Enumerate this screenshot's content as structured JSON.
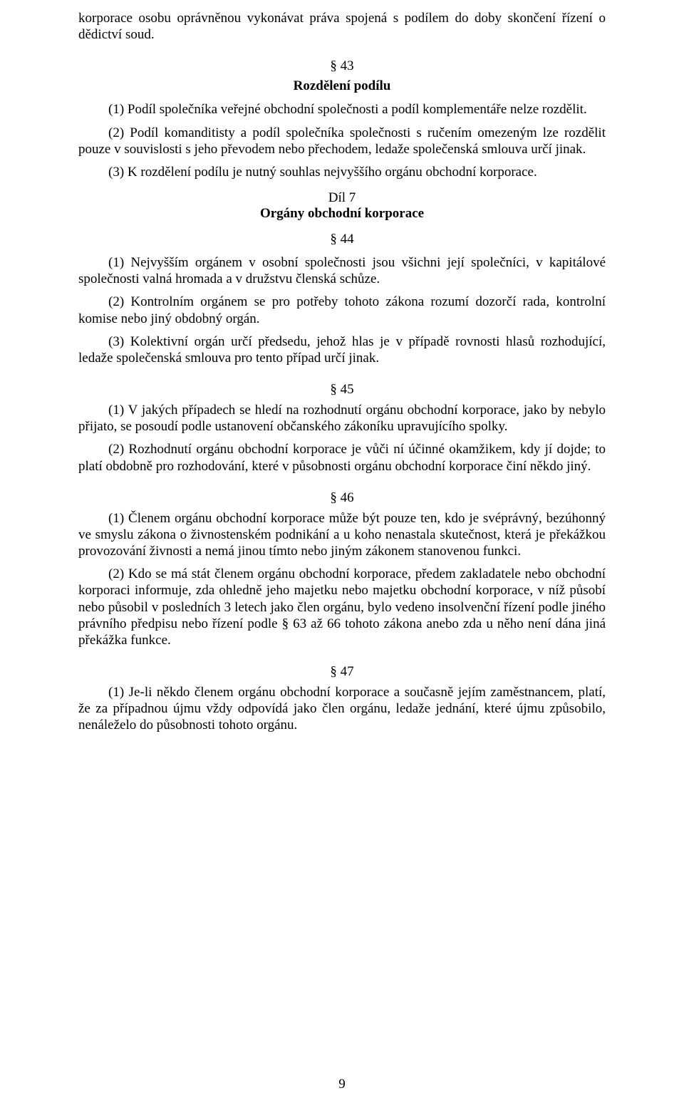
{
  "fragment_top": "korporace osobu oprávněnou vykonávat práva spojená s podílem do doby skončení řízení o dědictví soud.",
  "s43": {
    "num": "§ 43",
    "title": "Rozdělení podílu",
    "p1": "(1) Podíl společníka veřejné obchodní společnosti a podíl komplementáře nelze rozdělit.",
    "p2": "(2) Podíl komanditisty a podíl společníka společnosti s ručením omezeným lze rozdělit pouze v souvislosti s jeho převodem nebo přechodem, ledaže společenská smlouva určí jinak.",
    "p3": "(3) K rozdělení podílu je nutný souhlas nejvyššího orgánu obchodní korporace."
  },
  "dil7": {
    "label": "Díl 7",
    "title": "Orgány obchodní korporace"
  },
  "s44": {
    "num": "§ 44",
    "p1": "(1) Nejvyšším orgánem v osobní společnosti jsou všichni její společníci, v kapitálové společnosti valná hromada a v družstvu členská schůze.",
    "p2": "(2) Kontrolním orgánem se pro potřeby tohoto zákona rozumí dozorčí rada, kontrolní komise nebo jiný obdobný orgán.",
    "p3": "(3) Kolektivní orgán určí předsedu, jehož hlas je v případě rovnosti hlasů rozhodující, ledaže společenská smlouva pro tento případ určí jinak."
  },
  "s45": {
    "num": "§ 45",
    "p1": "(1) V jakých případech se hledí na rozhodnutí orgánu obchodní korporace, jako by nebylo přijato, se posoudí podle ustanovení občanského zákoníku upravujícího spolky.",
    "p2": "(2) Rozhodnutí orgánu obchodní korporace je vůči ní účinné okamžikem, kdy jí dojde; to platí obdobně pro rozhodování, které v působnosti orgánu obchodní korporace činí někdo jiný."
  },
  "s46": {
    "num": "§ 46",
    "p1": "(1) Členem orgánu obchodní korporace může být pouze ten, kdo je svéprávný, bezúhonný ve smyslu zákona o živnostenském podnikání a u koho nenastala skutečnost, která je překážkou provozování živnosti a nemá jinou tímto nebo jiným zákonem stanovenou funkci.",
    "p2": "(2) Kdo se má stát členem orgánu obchodní korporace, předem zakladatele nebo obchodní korporaci informuje, zda ohledně jeho majetku nebo majetku obchodní korporace, v níž působí nebo působil v posledních 3 letech jako člen orgánu, bylo vedeno insolvenční řízení podle jiného právního předpisu nebo řízení podle § 63 až 66 tohoto zákona anebo zda u něho není dána jiná překážka funkce."
  },
  "s47": {
    "num": "§ 47",
    "p1": "(1) Je-li někdo členem orgánu obchodní korporace a současně jejím zaměstnancem, platí, že za případnou újmu vždy odpovídá jako člen orgánu, ledaže jednání, které újmu způsobilo, nenáleželo do působnosti tohoto orgánu."
  },
  "page_number": "9"
}
